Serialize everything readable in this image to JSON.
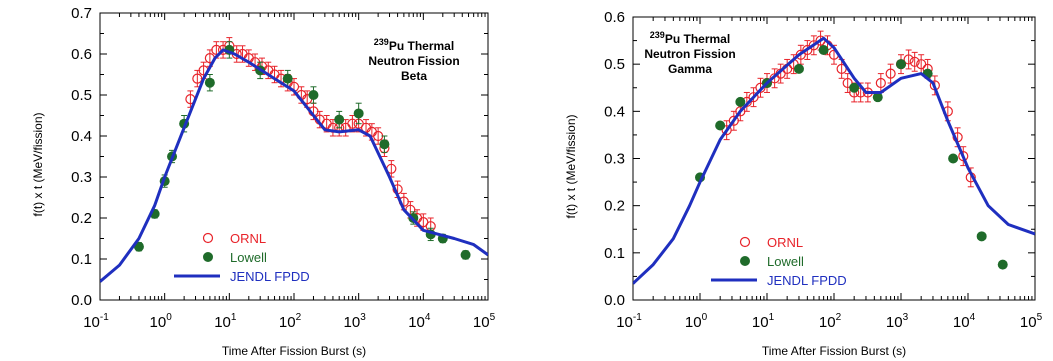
{
  "chart_data": [
    {
      "type": "scatter",
      "title": "",
      "annotation": {
        "mass": "239",
        "element": "Pu Thermal",
        "line2": "Neutron Fission",
        "line3": "Beta"
      },
      "xlabel": "Time After Fission Burst (s)",
      "ylabel": "f(t) x t (MeV/fission)",
      "xscale": "log",
      "xlim": [
        0.1,
        100000
      ],
      "ylim": [
        0,
        0.7
      ],
      "yticks": [
        "0.0",
        "0.1",
        "0.2",
        "0.3",
        "0.4",
        "0.5",
        "0.6",
        "0.7"
      ],
      "xticks": [
        {
          "base": "10",
          "exp": "-1"
        },
        {
          "base": "10",
          "exp": "0"
        },
        {
          "base": "10",
          "exp": "1"
        },
        {
          "base": "10",
          "exp": "2"
        },
        {
          "base": "10",
          "exp": "3"
        },
        {
          "base": "10",
          "exp": "4"
        },
        {
          "base": "10",
          "exp": "5"
        }
      ],
      "legend_position": "lower-left",
      "series": [
        {
          "name": "ORNL",
          "kind": "open-circle",
          "color": "#e8232a",
          "points": [
            {
              "x": 2.5,
              "y": 0.49,
              "err": 0.02
            },
            {
              "x": 3.2,
              "y": 0.54,
              "err": 0.02
            },
            {
              "x": 4,
              "y": 0.56,
              "err": 0.02
            },
            {
              "x": 5,
              "y": 0.59,
              "err": 0.02
            },
            {
              "x": 6.3,
              "y": 0.61,
              "err": 0.02
            },
            {
              "x": 8,
              "y": 0.61,
              "err": 0.02
            },
            {
              "x": 10,
              "y": 0.62,
              "err": 0.02
            },
            {
              "x": 13,
              "y": 0.6,
              "err": 0.02
            },
            {
              "x": 16,
              "y": 0.6,
              "err": 0.02
            },
            {
              "x": 20,
              "y": 0.59,
              "err": 0.02
            },
            {
              "x": 25,
              "y": 0.58,
              "err": 0.02
            },
            {
              "x": 32,
              "y": 0.57,
              "err": 0.02
            },
            {
              "x": 40,
              "y": 0.56,
              "err": 0.02
            },
            {
              "x": 50,
              "y": 0.55,
              "err": 0.02
            },
            {
              "x": 63,
              "y": 0.54,
              "err": 0.02
            },
            {
              "x": 80,
              "y": 0.53,
              "err": 0.02
            },
            {
              "x": 100,
              "y": 0.52,
              "err": 0.02
            },
            {
              "x": 130,
              "y": 0.5,
              "err": 0.02
            },
            {
              "x": 160,
              "y": 0.49,
              "err": 0.02
            },
            {
              "x": 200,
              "y": 0.46,
              "err": 0.02
            },
            {
              "x": 250,
              "y": 0.44,
              "err": 0.02
            },
            {
              "x": 320,
              "y": 0.43,
              "err": 0.02
            },
            {
              "x": 400,
              "y": 0.42,
              "err": 0.02
            },
            {
              "x": 500,
              "y": 0.42,
              "err": 0.02
            },
            {
              "x": 630,
              "y": 0.42,
              "err": 0.02
            },
            {
              "x": 800,
              "y": 0.43,
              "err": 0.02
            },
            {
              "x": 1000,
              "y": 0.43,
              "err": 0.02
            },
            {
              "x": 1300,
              "y": 0.42,
              "err": 0.02
            },
            {
              "x": 1600,
              "y": 0.41,
              "err": 0.02
            },
            {
              "x": 2000,
              "y": 0.4,
              "err": 0.02
            },
            {
              "x": 2500,
              "y": 0.37,
              "err": 0.02
            },
            {
              "x": 3200,
              "y": 0.32,
              "err": 0.02
            },
            {
              "x": 4000,
              "y": 0.27,
              "err": 0.02
            },
            {
              "x": 5000,
              "y": 0.24,
              "err": 0.02
            },
            {
              "x": 6300,
              "y": 0.22,
              "err": 0.02
            },
            {
              "x": 8000,
              "y": 0.2,
              "err": 0.02
            },
            {
              "x": 10000,
              "y": 0.19,
              "err": 0.02
            },
            {
              "x": 13000,
              "y": 0.18,
              "err": 0.02
            }
          ]
        },
        {
          "name": "Lowell",
          "kind": "filled-circle",
          "color": "#1f6b2a",
          "points": [
            {
              "x": 0.4,
              "y": 0.13,
              "err": 0.01
            },
            {
              "x": 0.7,
              "y": 0.21,
              "err": 0.01
            },
            {
              "x": 1.0,
              "y": 0.29,
              "err": 0.015
            },
            {
              "x": 1.3,
              "y": 0.35,
              "err": 0.015
            },
            {
              "x": 2.0,
              "y": 0.43,
              "err": 0.02
            },
            {
              "x": 5.0,
              "y": 0.53,
              "err": 0.02
            },
            {
              "x": 10,
              "y": 0.61,
              "err": 0.02
            },
            {
              "x": 30,
              "y": 0.56,
              "err": 0.02
            },
            {
              "x": 80,
              "y": 0.54,
              "err": 0.02
            },
            {
              "x": 200,
              "y": 0.5,
              "err": 0.02
            },
            {
              "x": 500,
              "y": 0.44,
              "err": 0.02
            },
            {
              "x": 1000,
              "y": 0.455,
              "err": 0.025
            },
            {
              "x": 2500,
              "y": 0.38,
              "err": 0.02
            },
            {
              "x": 7000,
              "y": 0.2,
              "err": 0.015
            },
            {
              "x": 13000,
              "y": 0.16,
              "err": 0.015
            },
            {
              "x": 20000,
              "y": 0.15,
              "err": 0.01
            },
            {
              "x": 45000,
              "y": 0.11,
              "err": 0.01
            }
          ]
        },
        {
          "name": "JENDL FPDD",
          "kind": "line",
          "color": "#1f2fbf",
          "points": [
            {
              "x": 0.1,
              "y": 0.045
            },
            {
              "x": 0.2,
              "y": 0.085
            },
            {
              "x": 0.4,
              "y": 0.15
            },
            {
              "x": 0.7,
              "y": 0.23
            },
            {
              "x": 1,
              "y": 0.3
            },
            {
              "x": 2,
              "y": 0.42
            },
            {
              "x": 4,
              "y": 0.54
            },
            {
              "x": 6,
              "y": 0.59
            },
            {
              "x": 8,
              "y": 0.61
            },
            {
              "x": 12,
              "y": 0.6
            },
            {
              "x": 20,
              "y": 0.58
            },
            {
              "x": 50,
              "y": 0.54
            },
            {
              "x": 100,
              "y": 0.51
            },
            {
              "x": 200,
              "y": 0.45
            },
            {
              "x": 300,
              "y": 0.415
            },
            {
              "x": 500,
              "y": 0.41
            },
            {
              "x": 1000,
              "y": 0.415
            },
            {
              "x": 1500,
              "y": 0.4
            },
            {
              "x": 3000,
              "y": 0.3
            },
            {
              "x": 5000,
              "y": 0.22
            },
            {
              "x": 10000,
              "y": 0.17
            },
            {
              "x": 30000,
              "y": 0.15
            },
            {
              "x": 60000,
              "y": 0.135
            },
            {
              "x": 100000,
              "y": 0.11
            }
          ]
        }
      ]
    },
    {
      "type": "scatter",
      "title": "",
      "annotation": {
        "mass": "239",
        "element": "Pu Thermal",
        "line2": "Neutron Fission",
        "line3": "Gamma"
      },
      "xlabel": "Time After Fission Burst (s)",
      "ylabel": "f(t) x t (MeV/fission)",
      "xscale": "log",
      "xlim": [
        0.1,
        100000
      ],
      "ylim": [
        0,
        0.6
      ],
      "yticks": [
        "0.0",
        "0.1",
        "0.2",
        "0.3",
        "0.4",
        "0.5",
        "0.6"
      ],
      "xticks": [
        {
          "base": "10",
          "exp": "-1"
        },
        {
          "base": "10",
          "exp": "0"
        },
        {
          "base": "10",
          "exp": "1"
        },
        {
          "base": "10",
          "exp": "2"
        },
        {
          "base": "10",
          "exp": "3"
        },
        {
          "base": "10",
          "exp": "4"
        },
        {
          "base": "10",
          "exp": "5"
        }
      ],
      "legend_position": "lower-center",
      "series": [
        {
          "name": "ORNL",
          "kind": "open-circle",
          "color": "#e8232a",
          "points": [
            {
              "x": 2.5,
              "y": 0.36,
              "err": 0.02
            },
            {
              "x": 3.2,
              "y": 0.38,
              "err": 0.02
            },
            {
              "x": 4,
              "y": 0.4,
              "err": 0.02
            },
            {
              "x": 5,
              "y": 0.42,
              "err": 0.02
            },
            {
              "x": 6.3,
              "y": 0.43,
              "err": 0.02
            },
            {
              "x": 8,
              "y": 0.45,
              "err": 0.02
            },
            {
              "x": 10,
              "y": 0.46,
              "err": 0.02
            },
            {
              "x": 13,
              "y": 0.47,
              "err": 0.02
            },
            {
              "x": 16,
              "y": 0.48,
              "err": 0.02
            },
            {
              "x": 20,
              "y": 0.49,
              "err": 0.02
            },
            {
              "x": 25,
              "y": 0.5,
              "err": 0.02
            },
            {
              "x": 32,
              "y": 0.52,
              "err": 0.02
            },
            {
              "x": 40,
              "y": 0.53,
              "err": 0.02
            },
            {
              "x": 50,
              "y": 0.54,
              "err": 0.02
            },
            {
              "x": 63,
              "y": 0.55,
              "err": 0.02
            },
            {
              "x": 80,
              "y": 0.54,
              "err": 0.02
            },
            {
              "x": 100,
              "y": 0.52,
              "err": 0.02
            },
            {
              "x": 130,
              "y": 0.49,
              "err": 0.02
            },
            {
              "x": 160,
              "y": 0.46,
              "err": 0.02
            },
            {
              "x": 200,
              "y": 0.44,
              "err": 0.02
            },
            {
              "x": 250,
              "y": 0.44,
              "err": 0.02
            },
            {
              "x": 320,
              "y": 0.44,
              "err": 0.02
            },
            {
              "x": 500,
              "y": 0.46,
              "err": 0.02
            },
            {
              "x": 700,
              "y": 0.48,
              "err": 0.02
            },
            {
              "x": 1000,
              "y": 0.5,
              "err": 0.02
            },
            {
              "x": 1300,
              "y": 0.51,
              "err": 0.02
            },
            {
              "x": 1600,
              "y": 0.505,
              "err": 0.02
            },
            {
              "x": 2000,
              "y": 0.5,
              "err": 0.02
            },
            {
              "x": 2500,
              "y": 0.49,
              "err": 0.02
            },
            {
              "x": 3200,
              "y": 0.455,
              "err": 0.02
            },
            {
              "x": 5000,
              "y": 0.4,
              "err": 0.02
            },
            {
              "x": 7000,
              "y": 0.345,
              "err": 0.02
            },
            {
              "x": 8500,
              "y": 0.305,
              "err": 0.02
            },
            {
              "x": 11000,
              "y": 0.26,
              "err": 0.02
            }
          ]
        },
        {
          "name": "Lowell",
          "kind": "filled-circle",
          "color": "#1f6b2a",
          "points": [
            {
              "x": 1.0,
              "y": 0.26
            },
            {
              "x": 2.0,
              "y": 0.37
            },
            {
              "x": 4.0,
              "y": 0.42
            },
            {
              "x": 10,
              "y": 0.46
            },
            {
              "x": 30,
              "y": 0.49
            },
            {
              "x": 70,
              "y": 0.53
            },
            {
              "x": 200,
              "y": 0.45
            },
            {
              "x": 450,
              "y": 0.43
            },
            {
              "x": 1000,
              "y": 0.5
            },
            {
              "x": 2500,
              "y": 0.48
            },
            {
              "x": 6000,
              "y": 0.3
            },
            {
              "x": 16000,
              "y": 0.135
            },
            {
              "x": 33000,
              "y": 0.075
            }
          ]
        },
        {
          "name": "JENDL FPDD",
          "kind": "line",
          "color": "#1f2fbf",
          "points": [
            {
              "x": 0.1,
              "y": 0.035
            },
            {
              "x": 0.2,
              "y": 0.075
            },
            {
              "x": 0.4,
              "y": 0.13
            },
            {
              "x": 0.7,
              "y": 0.2
            },
            {
              "x": 1,
              "y": 0.25
            },
            {
              "x": 2,
              "y": 0.34
            },
            {
              "x": 4,
              "y": 0.4
            },
            {
              "x": 10,
              "y": 0.46
            },
            {
              "x": 30,
              "y": 0.52
            },
            {
              "x": 70,
              "y": 0.555
            },
            {
              "x": 100,
              "y": 0.535
            },
            {
              "x": 200,
              "y": 0.47
            },
            {
              "x": 300,
              "y": 0.44
            },
            {
              "x": 500,
              "y": 0.44
            },
            {
              "x": 1000,
              "y": 0.47
            },
            {
              "x": 2000,
              "y": 0.48
            },
            {
              "x": 3000,
              "y": 0.46
            },
            {
              "x": 5000,
              "y": 0.38
            },
            {
              "x": 10000,
              "y": 0.28
            },
            {
              "x": 20000,
              "y": 0.2
            },
            {
              "x": 40000,
              "y": 0.16
            },
            {
              "x": 100000,
              "y": 0.14
            }
          ]
        }
      ]
    }
  ]
}
